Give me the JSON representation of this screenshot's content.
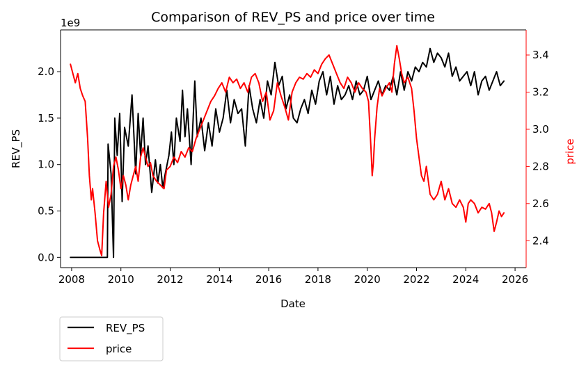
{
  "chart_data": {
    "type": "line",
    "title": "Comparison of REV_PS and price over time",
    "xlabel": "Date",
    "ylabel_left": "REV_PS",
    "ylabel_right": "price",
    "left_axis_offset_text": "1e9",
    "x_ticks": [
      "2008",
      "2010",
      "2012",
      "2014",
      "2016",
      "2018",
      "2020",
      "2022",
      "2024",
      "2026"
    ],
    "y_left_ticks": [
      "0.0",
      "0.5",
      "1.0",
      "1.5",
      "2.0"
    ],
    "y_right_ticks": [
      "2.4",
      "2.6",
      "2.8",
      "3.0",
      "3.2",
      "3.4"
    ],
    "xlim": [
      2007.55,
      2026.45
    ],
    "ylim_left": [
      -0.11,
      2.45
    ],
    "ylim_right": [
      2.255,
      3.535
    ],
    "grid": false,
    "legend_position": "below-left",
    "legend": [
      "REV_PS",
      "price"
    ],
    "colors": {
      "REV_PS": "#000000",
      "price": "#ff0000"
    },
    "series": [
      {
        "name": "REV_PS",
        "axis": "left",
        "color": "#000000",
        "x": [
          2007.95,
          2009.45,
          2009.48,
          2009.6,
          2009.7,
          2009.75,
          2009.85,
          2009.95,
          2010.05,
          2010.15,
          2010.3,
          2010.45,
          2010.6,
          2010.7,
          2010.8,
          2010.9,
          2011.0,
          2011.1,
          2011.25,
          2011.4,
          2011.5,
          2011.6,
          2011.7,
          2011.8,
          2011.95,
          2012.05,
          2012.15,
          2012.25,
          2012.4,
          2012.5,
          2012.6,
          2012.7,
          2012.85,
          2013.0,
          2013.1,
          2013.25,
          2013.4,
          2013.55,
          2013.7,
          2013.85,
          2014.0,
          2014.15,
          2014.3,
          2014.45,
          2014.6,
          2014.75,
          2014.9,
          2015.05,
          2015.2,
          2015.35,
          2015.5,
          2015.65,
          2015.8,
          2015.95,
          2016.1,
          2016.25,
          2016.4,
          2016.55,
          2016.7,
          2016.85,
          2017.0,
          2017.15,
          2017.3,
          2017.45,
          2017.6,
          2017.75,
          2017.9,
          2018.05,
          2018.2,
          2018.35,
          2018.5,
          2018.65,
          2018.8,
          2018.95,
          2019.1,
          2019.25,
          2019.4,
          2019.55,
          2019.7,
          2019.85,
          2020.0,
          2020.15,
          2020.3,
          2020.45,
          2020.6,
          2020.75,
          2020.9,
          2021.05,
          2021.2,
          2021.35,
          2021.5,
          2021.65,
          2021.8,
          2021.95,
          2022.1,
          2022.25,
          2022.4,
          2022.55,
          2022.7,
          2022.85,
          2023.0,
          2023.15,
          2023.3,
          2023.45,
          2023.6,
          2023.75,
          2023.9,
          2024.05,
          2024.2,
          2024.35,
          2024.5,
          2024.65,
          2024.8,
          2024.95,
          2025.1,
          2025.25,
          2025.4,
          2025.55
        ],
        "values": [
          0.0,
          0.0,
          1.22,
          0.9,
          0.0,
          1.5,
          1.1,
          1.55,
          0.6,
          1.4,
          1.2,
          1.75,
          0.9,
          1.55,
          1.1,
          1.5,
          1.0,
          1.2,
          0.7,
          1.05,
          0.8,
          1.0,
          0.75,
          0.9,
          1.1,
          1.35,
          1.0,
          1.5,
          1.25,
          1.8,
          1.3,
          1.6,
          1.0,
          1.9,
          1.3,
          1.5,
          1.15,
          1.45,
          1.2,
          1.6,
          1.35,
          1.5,
          1.8,
          1.45,
          1.7,
          1.55,
          1.6,
          1.2,
          1.85,
          1.6,
          1.45,
          1.7,
          1.5,
          1.9,
          1.75,
          2.1,
          1.85,
          1.95,
          1.6,
          1.75,
          1.5,
          1.45,
          1.6,
          1.7,
          1.55,
          1.8,
          1.65,
          1.9,
          2.0,
          1.75,
          1.95,
          1.65,
          1.85,
          1.7,
          1.75,
          1.85,
          1.7,
          1.9,
          1.75,
          1.8,
          1.95,
          1.7,
          1.8,
          1.9,
          1.75,
          1.85,
          1.8,
          1.95,
          1.75,
          2.0,
          1.8,
          2.0,
          1.9,
          2.05,
          2.0,
          2.1,
          2.05,
          2.25,
          2.1,
          2.2,
          2.15,
          2.05,
          2.2,
          1.95,
          2.05,
          1.9,
          1.95,
          2.0,
          1.85,
          2.0,
          1.75,
          1.9,
          1.95,
          1.8,
          1.9,
          2.0,
          1.85,
          1.9
        ]
      },
      {
        "name": "price",
        "axis": "right",
        "color": "#ff0000",
        "x": [
          2007.95,
          2008.05,
          2008.15,
          2008.25,
          2008.35,
          2008.45,
          2008.55,
          2008.65,
          2008.72,
          2008.8,
          2008.85,
          2008.95,
          2009.05,
          2009.15,
          2009.22,
          2009.3,
          2009.4,
          2009.5,
          2009.6,
          2009.7,
          2009.8,
          2009.9,
          2010.0,
          2010.1,
          2010.2,
          2010.3,
          2010.4,
          2010.5,
          2010.6,
          2010.7,
          2010.8,
          2010.9,
          2011.0,
          2011.1,
          2011.2,
          2011.3,
          2011.45,
          2011.6,
          2011.75,
          2011.85,
          2012.0,
          2012.15,
          2012.3,
          2012.45,
          2012.6,
          2012.75,
          2012.9,
          2013.05,
          2013.2,
          2013.35,
          2013.5,
          2013.65,
          2013.8,
          2013.95,
          2014.1,
          2014.25,
          2014.4,
          2014.55,
          2014.7,
          2014.85,
          2015.0,
          2015.15,
          2015.3,
          2015.45,
          2015.6,
          2015.75,
          2015.9,
          2016.05,
          2016.2,
          2016.35,
          2016.5,
          2016.65,
          2016.8,
          2016.95,
          2017.1,
          2017.25,
          2017.4,
          2017.55,
          2017.7,
          2017.85,
          2018.0,
          2018.15,
          2018.3,
          2018.45,
          2018.6,
          2018.75,
          2018.9,
          2019.05,
          2019.2,
          2019.35,
          2019.5,
          2019.65,
          2019.8,
          2019.95,
          2020.05,
          2020.15,
          2020.2,
          2020.25,
          2020.3,
          2020.4,
          2020.5,
          2020.6,
          2020.75,
          2020.9,
          2021.0,
          2021.1,
          2021.2,
          2021.3,
          2021.4,
          2021.5,
          2021.65,
          2021.8,
          2021.9,
          2022.0,
          2022.1,
          2022.2,
          2022.3,
          2022.4,
          2022.55,
          2022.7,
          2022.85,
          2023.0,
          2023.15,
          2023.3,
          2023.45,
          2023.6,
          2023.75,
          2023.9,
          2024.0,
          2024.1,
          2024.2,
          2024.35,
          2024.5,
          2024.65,
          2024.8,
          2024.95,
          2025.05,
          2025.15,
          2025.25,
          2025.35,
          2025.45,
          2025.55
        ],
        "values": [
          3.35,
          3.3,
          3.25,
          3.3,
          3.22,
          3.18,
          3.15,
          2.95,
          2.75,
          2.62,
          2.68,
          2.55,
          2.4,
          2.35,
          2.32,
          2.55,
          2.72,
          2.58,
          2.65,
          2.8,
          2.85,
          2.78,
          2.68,
          2.75,
          2.7,
          2.62,
          2.7,
          2.75,
          2.8,
          2.72,
          2.85,
          2.9,
          2.85,
          2.8,
          2.82,
          2.75,
          2.72,
          2.7,
          2.68,
          2.78,
          2.8,
          2.85,
          2.82,
          2.88,
          2.85,
          2.9,
          2.88,
          2.95,
          3.0,
          3.05,
          3.1,
          3.15,
          3.18,
          3.22,
          3.25,
          3.2,
          3.28,
          3.25,
          3.27,
          3.22,
          3.25,
          3.2,
          3.28,
          3.3,
          3.25,
          3.15,
          3.2,
          3.05,
          3.1,
          3.25,
          3.18,
          3.12,
          3.05,
          3.2,
          3.25,
          3.28,
          3.27,
          3.3,
          3.28,
          3.32,
          3.3,
          3.35,
          3.38,
          3.4,
          3.35,
          3.3,
          3.25,
          3.22,
          3.28,
          3.25,
          3.2,
          3.25,
          3.22,
          3.2,
          3.15,
          2.9,
          2.75,
          2.82,
          2.95,
          3.12,
          3.22,
          3.18,
          3.22,
          3.25,
          3.2,
          3.35,
          3.45,
          3.38,
          3.3,
          3.25,
          3.28,
          3.22,
          3.1,
          2.95,
          2.85,
          2.75,
          2.72,
          2.8,
          2.65,
          2.62,
          2.65,
          2.72,
          2.62,
          2.68,
          2.6,
          2.58,
          2.62,
          2.58,
          2.5,
          2.6,
          2.62,
          2.6,
          2.55,
          2.58,
          2.57,
          2.6,
          2.55,
          2.45,
          2.5,
          2.56,
          2.53,
          2.55
        ]
      }
    ]
  }
}
